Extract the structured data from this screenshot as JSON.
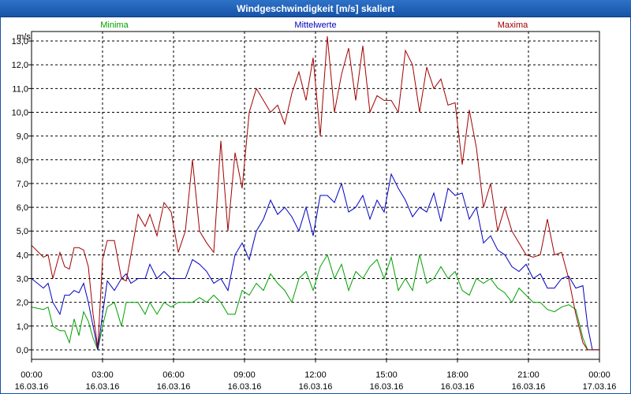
{
  "window": {
    "title": "Windgeschwindigkeit [m/s] skaliert"
  },
  "chart_data": {
    "type": "line",
    "title": "Windgeschwindigkeit [m/s] skaliert",
    "ylabel": "m/s",
    "xlabel": "",
    "ylim": [
      -0.4,
      13.4
    ],
    "xlim": [
      0,
      24
    ],
    "yticks": [
      0.0,
      1.0,
      2.0,
      3.0,
      4.0,
      5.0,
      6.0,
      7.0,
      8.0,
      9.0,
      10.0,
      11.0,
      12.0,
      13.0
    ],
    "ytick_labels": [
      "0,0",
      "1,0",
      "2,0",
      "3,0",
      "4,0",
      "5,0",
      "6,0",
      "7,0",
      "8,0",
      "9,0",
      "10,0",
      "11,0",
      "12,0",
      "13,0"
    ],
    "xticks": [
      0,
      3,
      6,
      9,
      12,
      15,
      18,
      21,
      24
    ],
    "xtick_labels": [
      {
        "time": "00:00",
        "date": "16.03.16"
      },
      {
        "time": "03:00",
        "date": "16.03.16"
      },
      {
        "time": "06:00",
        "date": "16.03.16"
      },
      {
        "time": "09:00",
        "date": "16.03.16"
      },
      {
        "time": "12:00",
        "date": "16.03.16"
      },
      {
        "time": "15:00",
        "date": "16.03.16"
      },
      {
        "time": "18:00",
        "date": "16.03.16"
      },
      {
        "time": "21:00",
        "date": "16.03.16"
      },
      {
        "time": "00:00",
        "date": "17.03.16"
      }
    ],
    "grid": true,
    "legend_position": "top",
    "series": [
      {
        "name": "Minima",
        "color": "#00a000",
        "x": [
          0,
          0.5,
          0.7,
          0.9,
          1.2,
          1.4,
          1.6,
          1.8,
          2.0,
          2.2,
          2.4,
          2.6,
          2.8,
          3.0,
          3.2,
          3.5,
          3.8,
          4.0,
          4.2,
          4.5,
          4.8,
          5.0,
          5.3,
          5.6,
          5.9,
          6.2,
          6.5,
          6.8,
          7.1,
          7.4,
          7.7,
          8.0,
          8.3,
          8.6,
          8.9,
          9.2,
          9.5,
          9.8,
          10.1,
          10.4,
          10.7,
          11.0,
          11.3,
          11.6,
          11.9,
          12.2,
          12.5,
          12.8,
          13.1,
          13.4,
          13.7,
          14.0,
          14.3,
          14.6,
          14.9,
          15.2,
          15.5,
          15.8,
          16.1,
          16.4,
          16.7,
          17.0,
          17.3,
          17.6,
          17.9,
          18.2,
          18.5,
          18.8,
          19.1,
          19.4,
          19.7,
          20.0,
          20.3,
          20.6,
          20.9,
          21.2,
          21.5,
          21.8,
          22.1,
          22.4,
          22.7,
          23.0,
          23.3,
          23.5,
          23.7,
          24.0
        ],
        "values": [
          1.8,
          1.7,
          1.8,
          1.0,
          0.8,
          0.8,
          0.3,
          1.3,
          0.6,
          1.6,
          1.2,
          0.5,
          0.0,
          1.0,
          1.8,
          2.0,
          1.0,
          2.0,
          2.0,
          2.0,
          1.5,
          2.0,
          1.5,
          2.0,
          1.8,
          2.0,
          2.0,
          2.0,
          2.2,
          2.0,
          2.3,
          2.0,
          1.5,
          1.5,
          2.5,
          2.3,
          2.8,
          2.5,
          3.2,
          2.8,
          2.5,
          2.0,
          3.0,
          3.3,
          2.5,
          3.5,
          4.0,
          3.0,
          3.6,
          2.5,
          3.3,
          3.0,
          3.5,
          3.8,
          3.0,
          3.9,
          2.5,
          3.0,
          2.5,
          4.0,
          2.8,
          3.0,
          3.5,
          3.0,
          3.3,
          2.5,
          2.3,
          3.0,
          2.8,
          3.0,
          2.6,
          2.4,
          2.0,
          2.6,
          2.3,
          2.0,
          2.0,
          1.7,
          1.6,
          1.8,
          1.9,
          1.7,
          0.5,
          0.0,
          0.0,
          0.0
        ]
      },
      {
        "name": "Mittelwerte",
        "color": "#0000c0",
        "x": [
          0,
          0.5,
          0.7,
          0.9,
          1.2,
          1.4,
          1.6,
          1.8,
          2.0,
          2.2,
          2.4,
          2.6,
          2.8,
          3.0,
          3.2,
          3.5,
          3.8,
          4.0,
          4.2,
          4.5,
          4.8,
          5.0,
          5.3,
          5.6,
          5.9,
          6.2,
          6.5,
          6.8,
          7.1,
          7.4,
          7.7,
          8.0,
          8.3,
          8.6,
          8.9,
          9.2,
          9.5,
          9.8,
          10.1,
          10.4,
          10.7,
          11.0,
          11.3,
          11.6,
          11.9,
          12.2,
          12.5,
          12.8,
          13.1,
          13.4,
          13.7,
          14.0,
          14.3,
          14.6,
          14.9,
          15.2,
          15.5,
          15.8,
          16.1,
          16.4,
          16.7,
          17.0,
          17.3,
          17.6,
          17.9,
          18.2,
          18.5,
          18.8,
          19.1,
          19.4,
          19.7,
          20.0,
          20.3,
          20.6,
          20.9,
          21.2,
          21.5,
          21.8,
          22.1,
          22.4,
          22.7,
          23.0,
          23.3,
          23.5,
          23.7,
          24.0
        ],
        "values": [
          3.0,
          2.6,
          2.8,
          2.0,
          1.5,
          2.3,
          2.3,
          2.5,
          2.4,
          2.8,
          2.0,
          1.0,
          0.0,
          1.5,
          2.9,
          2.5,
          3.0,
          3.2,
          2.8,
          3.0,
          3.0,
          3.6,
          3.0,
          3.3,
          3.0,
          3.0,
          3.0,
          3.8,
          3.6,
          3.3,
          2.8,
          3.0,
          2.5,
          4.0,
          4.5,
          3.8,
          5.0,
          5.5,
          6.3,
          5.7,
          6.0,
          5.6,
          5.0,
          6.0,
          4.8,
          6.5,
          6.5,
          6.2,
          7.0,
          5.8,
          6.0,
          6.5,
          5.5,
          6.3,
          5.8,
          7.4,
          6.8,
          6.3,
          5.6,
          6.0,
          5.8,
          6.6,
          5.4,
          6.8,
          6.5,
          6.6,
          5.5,
          6.0,
          4.5,
          4.8,
          4.2,
          4.0,
          3.5,
          3.3,
          3.6,
          3.0,
          3.2,
          2.6,
          2.6,
          3.0,
          3.1,
          2.6,
          2.7,
          1.0,
          0.0,
          0.0
        ]
      },
      {
        "name": "Maxima",
        "color": "#a00000",
        "x": [
          0,
          0.5,
          0.7,
          0.9,
          1.2,
          1.4,
          1.6,
          1.8,
          2.0,
          2.2,
          2.4,
          2.6,
          2.8,
          3.0,
          3.2,
          3.5,
          3.8,
          4.0,
          4.2,
          4.5,
          4.8,
          5.0,
          5.3,
          5.6,
          5.9,
          6.2,
          6.5,
          6.8,
          7.1,
          7.4,
          7.7,
          8.0,
          8.3,
          8.6,
          8.9,
          9.2,
          9.5,
          9.8,
          10.1,
          10.4,
          10.7,
          11.0,
          11.3,
          11.6,
          11.9,
          12.2,
          12.5,
          12.8,
          13.1,
          13.4,
          13.7,
          14.0,
          14.3,
          14.6,
          14.9,
          15.2,
          15.5,
          15.8,
          16.1,
          16.4,
          16.7,
          17.0,
          17.3,
          17.6,
          17.9,
          18.2,
          18.5,
          18.8,
          19.1,
          19.4,
          19.7,
          20.0,
          20.3,
          20.6,
          20.9,
          21.2,
          21.5,
          21.8,
          22.1,
          22.4,
          22.7,
          23.0,
          23.3,
          23.5,
          23.7,
          24.0
        ],
        "values": [
          4.4,
          3.9,
          4.0,
          3.0,
          4.1,
          3.5,
          3.4,
          4.3,
          4.3,
          4.2,
          3.5,
          1.5,
          0.1,
          3.8,
          4.6,
          4.6,
          3.0,
          2.9,
          4.0,
          5.7,
          5.2,
          5.7,
          4.8,
          6.2,
          5.8,
          4.1,
          5.0,
          8.0,
          5.0,
          4.5,
          4.1,
          8.8,
          5.0,
          8.3,
          6.8,
          10.0,
          11.0,
          10.5,
          10.0,
          10.3,
          9.5,
          10.8,
          11.7,
          10.5,
          12.3,
          9.0,
          13.2,
          10.0,
          11.6,
          12.7,
          10.5,
          12.8,
          10.0,
          10.7,
          10.5,
          10.5,
          10.0,
          12.6,
          12.0,
          10.0,
          11.9,
          11.0,
          11.4,
          10.3,
          10.4,
          7.8,
          10.1,
          8.5,
          6.0,
          7.0,
          5.0,
          6.0,
          5.0,
          4.5,
          4.0,
          3.9,
          4.0,
          5.5,
          4.0,
          4.1,
          3.0,
          1.5,
          0.3,
          0.0,
          0.0,
          0.0
        ]
      }
    ]
  }
}
